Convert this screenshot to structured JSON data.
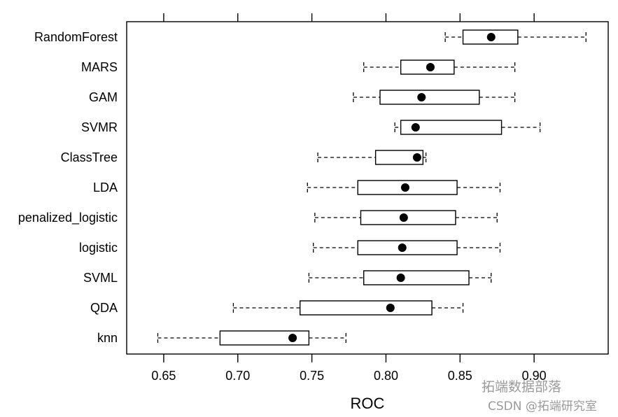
{
  "chart_data": {
    "type": "boxplot",
    "xlabel": "ROC",
    "xlim": [
      0.625,
      0.95
    ],
    "xticks": [
      "0.65",
      "0.70",
      "0.75",
      "0.80",
      "0.85",
      "0.90"
    ],
    "xtick_values": [
      0.65,
      0.7,
      0.75,
      0.8,
      0.85,
      0.9
    ],
    "grid": false,
    "categories": [
      "RandomForest",
      "MARS",
      "GAM",
      "SVMR",
      "ClassTree",
      "LDA",
      "penalized_logistic",
      "logistic",
      "SVML",
      "QDA",
      "knn"
    ],
    "boxes": [
      {
        "name": "RandomForest",
        "min": 0.84,
        "q1": 0.852,
        "median": 0.871,
        "q3": 0.889,
        "max": 0.935
      },
      {
        "name": "MARS",
        "min": 0.785,
        "q1": 0.81,
        "median": 0.83,
        "q3": 0.846,
        "max": 0.887
      },
      {
        "name": "GAM",
        "min": 0.778,
        "q1": 0.796,
        "median": 0.824,
        "q3": 0.863,
        "max": 0.887
      },
      {
        "name": "SVMR",
        "min": 0.806,
        "q1": 0.81,
        "median": 0.82,
        "q3": 0.878,
        "max": 0.904
      },
      {
        "name": "ClassTree",
        "min": 0.754,
        "q1": 0.793,
        "median": 0.821,
        "q3": 0.825,
        "max": 0.827
      },
      {
        "name": "LDA",
        "min": 0.747,
        "q1": 0.781,
        "median": 0.813,
        "q3": 0.848,
        "max": 0.877
      },
      {
        "name": "penalized_logistic",
        "min": 0.752,
        "q1": 0.783,
        "median": 0.812,
        "q3": 0.847,
        "max": 0.875
      },
      {
        "name": "logistic",
        "min": 0.751,
        "q1": 0.781,
        "median": 0.811,
        "q3": 0.848,
        "max": 0.877
      },
      {
        "name": "SVML",
        "min": 0.748,
        "q1": 0.785,
        "median": 0.81,
        "q3": 0.856,
        "max": 0.871
      },
      {
        "name": "QDA",
        "min": 0.697,
        "q1": 0.742,
        "median": 0.803,
        "q3": 0.831,
        "max": 0.852
      },
      {
        "name": "knn",
        "min": 0.646,
        "q1": 0.688,
        "median": 0.737,
        "q3": 0.748,
        "max": 0.773
      }
    ]
  },
  "watermark": {
    "line1": "拓端数据部落",
    "line2": "CSDN @拓端研究室"
  }
}
